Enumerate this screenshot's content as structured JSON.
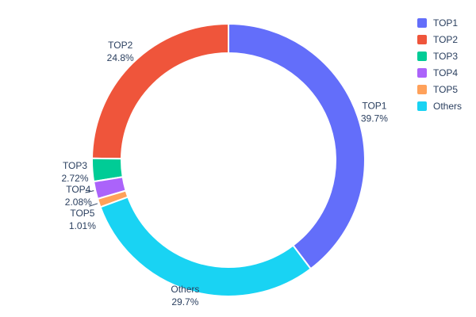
{
  "chart_data": {
    "type": "pie",
    "subtype": "donut",
    "title": "",
    "labels": [
      "TOP1",
      "TOP2",
      "TOP3",
      "TOP4",
      "TOP5",
      "Others"
    ],
    "values": [
      39.7,
      24.8,
      2.72,
      2.08,
      1.01,
      29.7
    ],
    "percent_labels": [
      "39.7%",
      "24.8%",
      "2.72%",
      "2.08%",
      "1.01%",
      "29.7%"
    ],
    "colors": [
      "#636EFA",
      "#EF553B",
      "#00CC96",
      "#AB63FA",
      "#FFA15A",
      "#19D3F3"
    ],
    "hole": 0.78,
    "label_position": "outside",
    "legend": {
      "position": "top-right",
      "entries": [
        "TOP1",
        "TOP2",
        "TOP3",
        "TOP4",
        "TOP5",
        "Others"
      ]
    },
    "text_color": "#2a3f5f",
    "background": "#ffffff"
  }
}
